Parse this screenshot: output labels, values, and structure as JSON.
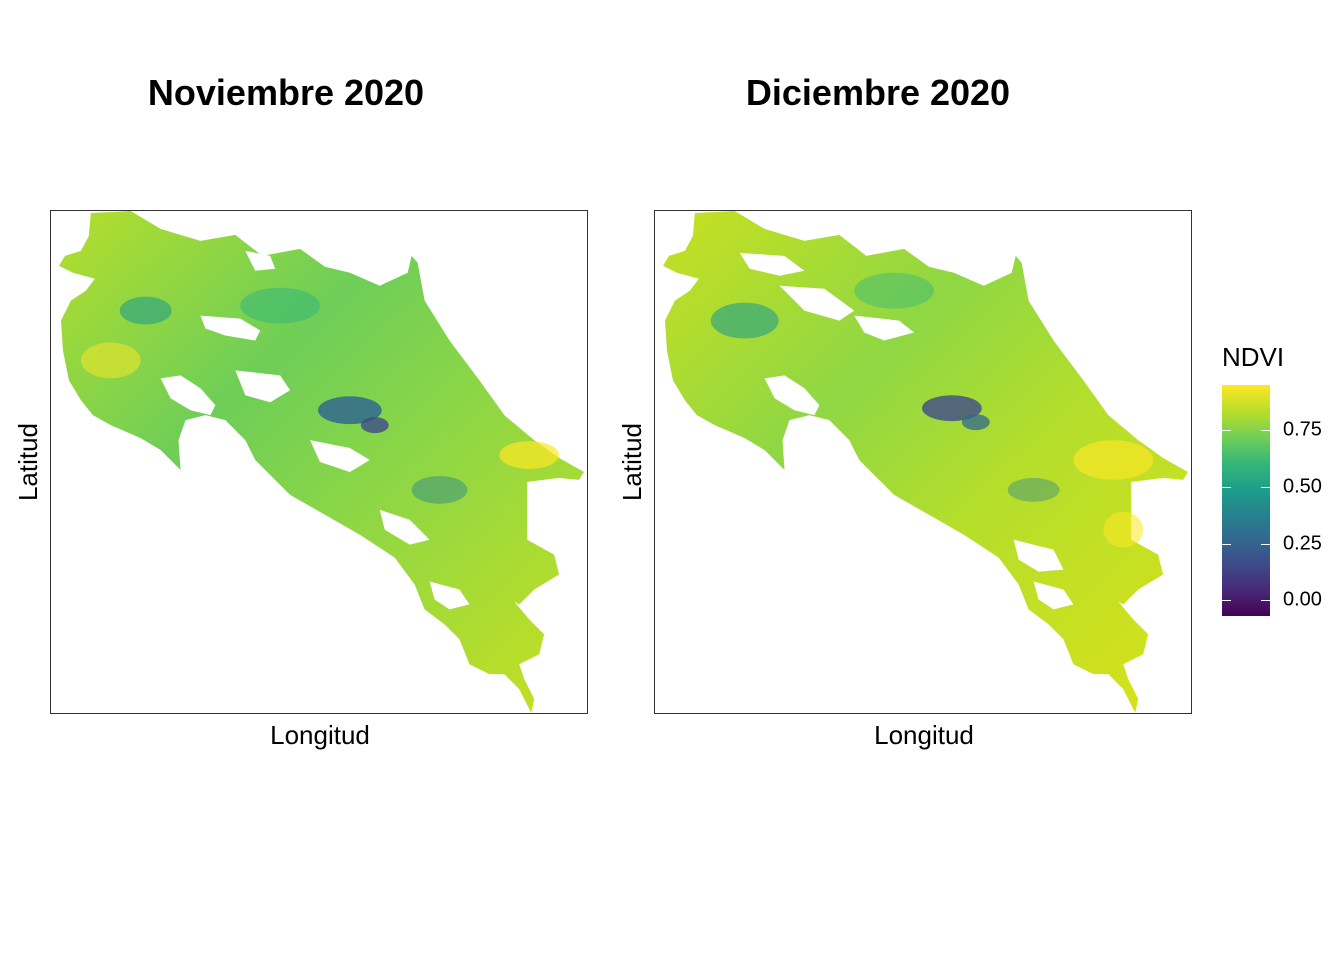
{
  "panels": [
    {
      "title": "Noviembre 2020",
      "xlabel": "Longitud",
      "ylabel": "Latitud"
    },
    {
      "title": "Diciembre 2020",
      "xlabel": "Longitud",
      "ylabel": "Latitud"
    }
  ],
  "legend": {
    "title": "NDVI",
    "ticks": [
      {
        "value": 0.75,
        "label": "0.75"
      },
      {
        "value": 0.5,
        "label": "0.50"
      },
      {
        "value": 0.25,
        "label": "0.25"
      },
      {
        "value": 0.0,
        "label": "0.00"
      }
    ],
    "min": -0.07,
    "max": 0.95,
    "colors": [
      "#440154",
      "#482878",
      "#3e4a89",
      "#31688e",
      "#26828e",
      "#1f9e89",
      "#35b779",
      "#6ece58",
      "#b5de2b",
      "#fde725"
    ]
  }
}
